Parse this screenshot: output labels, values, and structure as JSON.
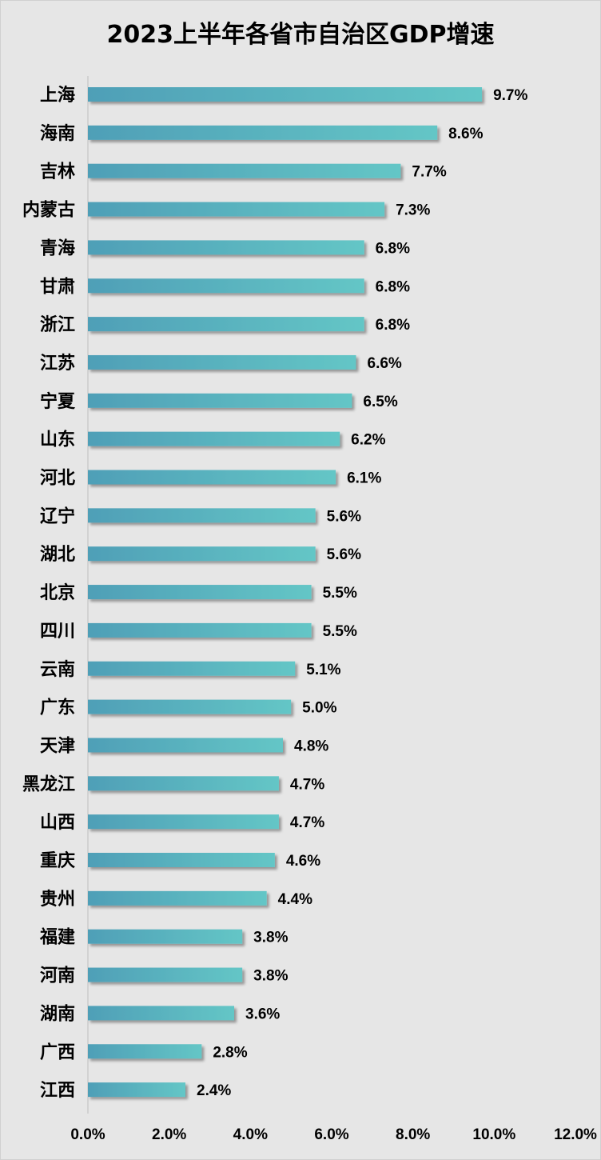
{
  "chart_data": {
    "type": "bar",
    "orientation": "horizontal",
    "title": "2023上半年各省市自治区GDP增速",
    "categories": [
      "上海",
      "海南",
      "吉林",
      "内蒙古",
      "青海",
      "甘肃",
      "浙江",
      "江苏",
      "宁夏",
      "山东",
      "河北",
      "辽宁",
      "湖北",
      "北京",
      "四川",
      "云南",
      "广东",
      "天津",
      "黑龙江",
      "山西",
      "重庆",
      "贵州",
      "福建",
      "河南",
      "湖南",
      "广西",
      "江西"
    ],
    "values": [
      9.7,
      8.6,
      7.7,
      7.3,
      6.8,
      6.8,
      6.8,
      6.6,
      6.5,
      6.2,
      6.1,
      5.6,
      5.6,
      5.5,
      5.5,
      5.1,
      5.0,
      4.8,
      4.7,
      4.7,
      4.6,
      4.4,
      3.8,
      3.8,
      3.6,
      2.8,
      2.4
    ],
    "value_labels": [
      "9.7%",
      "8.6%",
      "7.7%",
      "7.3%",
      "6.8%",
      "6.8%",
      "6.8%",
      "6.6%",
      "6.5%",
      "6.2%",
      "6.1%",
      "5.6%",
      "5.6%",
      "5.5%",
      "5.5%",
      "5.1%",
      "5.0%",
      "4.8%",
      "4.7%",
      "4.7%",
      "4.6%",
      "4.4%",
      "3.8%",
      "3.8%",
      "3.6%",
      "2.8%",
      "2.4%"
    ],
    "x_ticks": [
      "0.0%",
      "2.0%",
      "4.0%",
      "6.0%",
      "8.0%",
      "10.0%",
      "12.0%"
    ],
    "xlim": [
      0,
      12
    ],
    "xlabel": "",
    "ylabel": "",
    "grid": false,
    "legend": "none",
    "colors": {
      "bar_start": "#4f9fb7",
      "bar_end": "#64c6c6",
      "background": "#e6e6e6"
    }
  }
}
